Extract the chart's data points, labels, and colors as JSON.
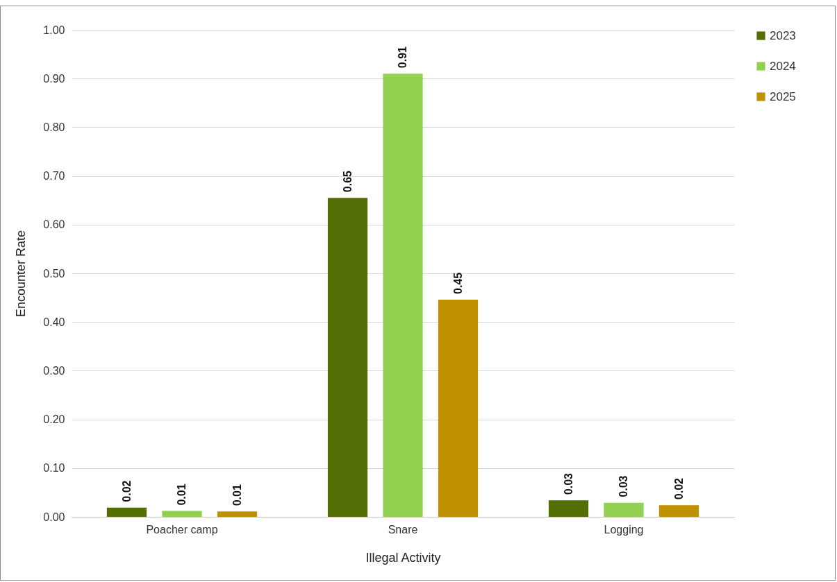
{
  "chart_data": {
    "type": "bar",
    "xlabel": "Illegal Activity",
    "ylabel": "Encounter Rate",
    "categories": [
      "Poacher camp",
      "Snare",
      "Logging"
    ],
    "series": [
      {
        "name": "2023",
        "color": "#546e06",
        "values": [
          0.019,
          0.655,
          0.034
        ],
        "value_labels": [
          "0.02",
          "0.65",
          "0.03"
        ]
      },
      {
        "name": "2024",
        "color": "#92d050",
        "values": [
          0.012,
          0.91,
          0.029
        ],
        "value_labels": [
          "0.01",
          "0.91",
          "0.03"
        ]
      },
      {
        "name": "2025",
        "color": "#bf9000",
        "values": [
          0.011,
          0.446,
          0.024
        ],
        "value_labels": [
          "0.01",
          "0.45",
          "0.02"
        ]
      }
    ],
    "ylim": [
      0,
      1
    ],
    "yticks": [
      {
        "value": 0,
        "label": "0.00"
      },
      {
        "value": 0.1,
        "label": "0.10"
      },
      {
        "value": 0.2,
        "label": "0.20"
      },
      {
        "value": 0.3,
        "label": "0.30"
      },
      {
        "value": 0.4,
        "label": "0.40"
      },
      {
        "value": 0.5,
        "label": "0.50"
      },
      {
        "value": 0.6,
        "label": "0.60"
      },
      {
        "value": 0.7,
        "label": "0.70"
      },
      {
        "value": 0.8,
        "label": "0.80"
      },
      {
        "value": 0.9,
        "label": "0.90"
      },
      {
        "value": 1,
        "label": "1.00"
      }
    ],
    "grid": true,
    "legend": "right"
  }
}
